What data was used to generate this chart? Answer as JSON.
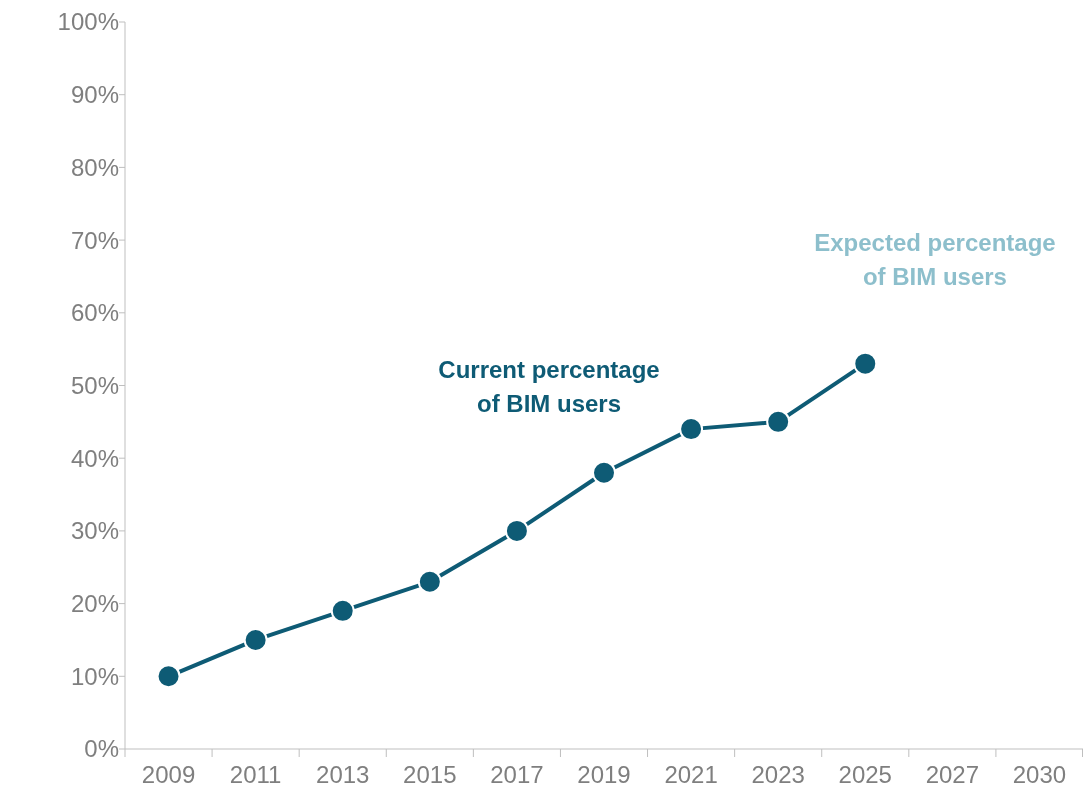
{
  "chart_data": {
    "type": "line",
    "categories": [
      "2009",
      "2011",
      "2013",
      "2015",
      "2017",
      "2019",
      "2021",
      "2023",
      "2025",
      "2027",
      "2030"
    ],
    "series": [
      {
        "color": "#0e5b75",
        "values": [
          10,
          15,
          19,
          23,
          30,
          38,
          44,
          45,
          53,
          null,
          null
        ]
      }
    ],
    "ylim": [
      0,
      100
    ],
    "yticks": [
      {
        "value": 0,
        "label": "0%"
      },
      {
        "value": 10,
        "label": "10%"
      },
      {
        "value": 20,
        "label": "20%"
      },
      {
        "value": 30,
        "label": "30%"
      },
      {
        "value": 40,
        "label": "40%"
      },
      {
        "value": 50,
        "label": "50%"
      },
      {
        "value": 60,
        "label": "60%"
      },
      {
        "value": 70,
        "label": "70%"
      },
      {
        "value": 80,
        "label": "80%"
      },
      {
        "value": 90,
        "label": "90%"
      },
      {
        "value": 100,
        "label": "100%"
      }
    ],
    "annotations": [
      "Current percentage\nof BIM users",
      "Expected percentage\nof BIM users"
    ],
    "marker": "circle",
    "line_style": "solid",
    "grid": false
  }
}
